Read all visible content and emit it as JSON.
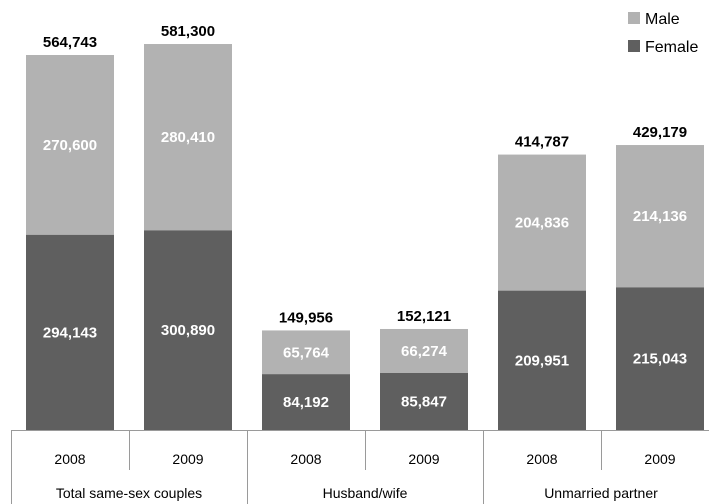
{
  "chart_data": {
    "type": "bar",
    "stacked": true,
    "groups": [
      "Total same-sex couples",
      "Husband/wife",
      "Unmarried partner"
    ],
    "categories": [
      "2008",
      "2009",
      "2008",
      "2009",
      "2008",
      "2009"
    ],
    "series": [
      {
        "name": "Female",
        "color": "#5f5f5f",
        "values": [
          294143,
          300890,
          84192,
          85847,
          209951,
          215043
        ]
      },
      {
        "name": "Male",
        "color": "#b2b2b2",
        "values": [
          270600,
          280410,
          65764,
          66274,
          204836,
          214136
        ]
      }
    ],
    "segment_labels": {
      "Female": [
        "294,143",
        "300,890",
        "84,192",
        "85,847",
        "209,951",
        "215,043"
      ],
      "Male": [
        "270,600",
        "280,410",
        "65,764",
        "66,274",
        "204,836",
        "214,136"
      ]
    },
    "totals": [
      "564,743",
      "581,300",
      "149,956",
      "152,121",
      "414,787",
      "429,179"
    ],
    "legend": [
      "Male",
      "Female"
    ],
    "legend_position": "top-right",
    "ylim": [
      0,
      625000
    ],
    "grid": false,
    "title": "",
    "xlabel": "",
    "ylabel": ""
  }
}
